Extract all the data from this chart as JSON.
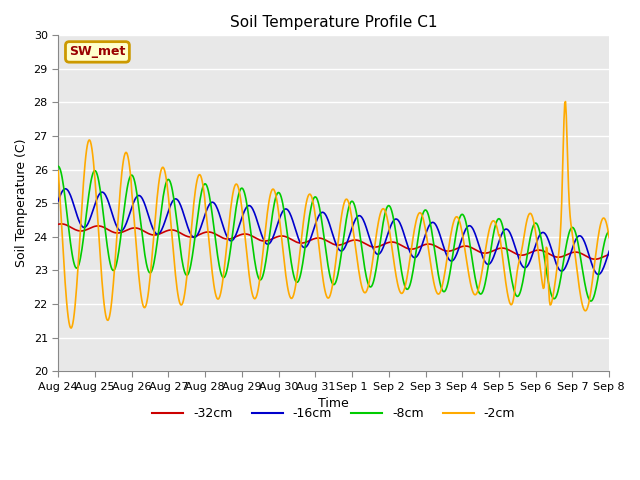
{
  "title": "Soil Temperature Profile C1",
  "xlabel": "Time",
  "ylabel": "Soil Temperature (C)",
  "ylim": [
    20.0,
    30.0
  ],
  "yticks": [
    20.0,
    21.0,
    22.0,
    23.0,
    24.0,
    25.0,
    26.0,
    27.0,
    28.0,
    29.0,
    30.0
  ],
  "xtick_labels": [
    "Aug 24",
    "Aug 25",
    "Aug 26",
    "Aug 27",
    "Aug 28",
    "Aug 29",
    "Aug 30",
    "Aug 31",
    "Sep 1",
    "Sep 2",
    "Sep 3",
    "Sep 4",
    "Sep 5",
    "Sep 6",
    "Sep 7",
    "Sep 8"
  ],
  "colors": {
    "-32cm": "#cc0000",
    "-16cm": "#0000cc",
    "-8cm": "#00cc00",
    "-2cm": "#ffaa00"
  },
  "annotation_text": "SW_met",
  "annotation_color": "#990000",
  "annotation_bg": "#ffffcc",
  "annotation_border": "#cc9900",
  "bg_color": "#e8e8e8",
  "grid_color": "#ffffff",
  "title_fontsize": 11,
  "label_fontsize": 9,
  "tick_fontsize": 8,
  "legend_fontsize": 9
}
